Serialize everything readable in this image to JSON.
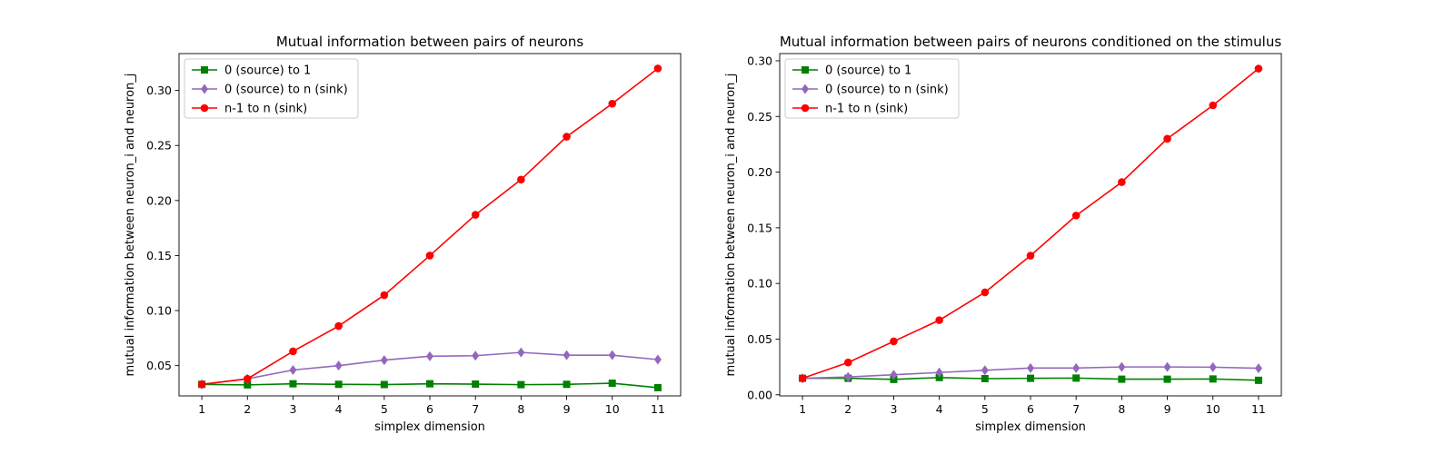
{
  "chart_data": [
    {
      "type": "line",
      "title": "Mutual information between pairs of neurons",
      "xlabel": "simplex dimension",
      "ylabel": "mutual information between neuron_i and neuron_j",
      "x": [
        1,
        2,
        3,
        4,
        5,
        6,
        7,
        8,
        9,
        10,
        11
      ],
      "xlim": [
        0.5,
        11.5
      ],
      "ylim": [
        0.0225,
        0.3335
      ],
      "yticks": [
        0.05,
        0.1,
        0.15,
        0.2,
        0.25,
        0.3
      ],
      "ytick_labels": [
        "0.05",
        "0.10",
        "0.15",
        "0.20",
        "0.25",
        "0.30"
      ],
      "grid": false,
      "legend_position": "top-left",
      "series": [
        {
          "name": "0 (source) to 1",
          "color": "#008000",
          "marker": "square",
          "values": [
            0.033,
            0.0325,
            0.0335,
            0.033,
            0.0328,
            0.0335,
            0.0332,
            0.0327,
            0.033,
            0.034,
            0.03
          ]
        },
        {
          "name": "0 (source) to n (sink)",
          "color": "#9467bd",
          "marker": "diamond",
          "values": [
            0.033,
            0.038,
            0.046,
            0.05,
            0.055,
            0.0585,
            0.059,
            0.062,
            0.0595,
            0.0595,
            0.0555
          ]
        },
        {
          "name": "n-1 to n (sink)",
          "color": "#ff0000",
          "marker": "circle",
          "values": [
            0.033,
            0.038,
            0.063,
            0.086,
            0.114,
            0.15,
            0.187,
            0.219,
            0.258,
            0.288,
            0.32
          ]
        }
      ]
    },
    {
      "type": "line",
      "title": "Mutual information between pairs of neurons conditioned on the stimulus",
      "xlabel": "simplex dimension",
      "ylabel": "mutual information between neuron_i and neuron_j",
      "x": [
        1,
        2,
        3,
        4,
        5,
        6,
        7,
        8,
        9,
        10,
        11
      ],
      "xlim": [
        0.5,
        11.5
      ],
      "ylim": [
        -0.001,
        0.3065
      ],
      "yticks": [
        0.0,
        0.05,
        0.1,
        0.15,
        0.2,
        0.25,
        0.3
      ],
      "ytick_labels": [
        "0.00",
        "0.05",
        "0.10",
        "0.15",
        "0.20",
        "0.25",
        "0.30"
      ],
      "grid": false,
      "legend_position": "top-left",
      "series": [
        {
          "name": "0 (source) to 1",
          "color": "#008000",
          "marker": "square",
          "values": [
            0.0148,
            0.0148,
            0.0138,
            0.0155,
            0.0145,
            0.0148,
            0.015,
            0.014,
            0.014,
            0.0142,
            0.013
          ]
        },
        {
          "name": "0 (source) to n (sink)",
          "color": "#9467bd",
          "marker": "diamond",
          "values": [
            0.0148,
            0.016,
            0.018,
            0.02,
            0.022,
            0.024,
            0.024,
            0.025,
            0.025,
            0.0248,
            0.0238
          ]
        },
        {
          "name": "n-1 to n (sink)",
          "color": "#ff0000",
          "marker": "circle",
          "values": [
            0.0148,
            0.029,
            0.048,
            0.067,
            0.092,
            0.125,
            0.161,
            0.191,
            0.23,
            0.26,
            0.293
          ]
        }
      ]
    }
  ]
}
